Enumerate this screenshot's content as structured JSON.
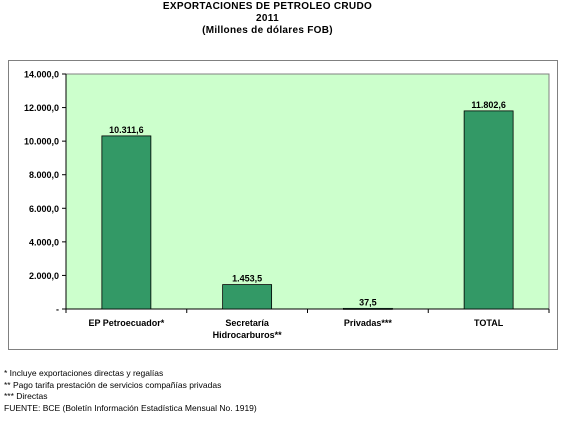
{
  "chart_data": {
    "type": "bar",
    "title": "EXPORTACIONES DE PETROLEO CRUDO",
    "subtitle": "2011",
    "unit_note": "(Millones de dólares FOB)",
    "categories": [
      [
        "EP Petroecuador*"
      ],
      [
        "Secretaría",
        "Hidrocarburos**"
      ],
      [
        "Privadas***"
      ],
      [
        "TOTAL"
      ]
    ],
    "values": [
      10311.6,
      1453.5,
      37.5,
      11802.6
    ],
    "data_labels": [
      "10.311,6",
      "1.453,5",
      "37,5",
      "11.802,6"
    ],
    "y_ticks": [
      {
        "value": 0,
        "label": "-"
      },
      {
        "value": 2000,
        "label": "2.000,0"
      },
      {
        "value": 4000,
        "label": "4.000,0"
      },
      {
        "value": 6000,
        "label": "6.000,0"
      },
      {
        "value": 8000,
        "label": "8.000,0"
      },
      {
        "value": 10000,
        "label": "10.000,0"
      },
      {
        "value": 12000,
        "label": "12.000,0"
      },
      {
        "value": 14000,
        "label": "14.000,0"
      }
    ],
    "ylim": [
      0,
      14000
    ],
    "grid": false,
    "colors": {
      "plot_bg": "#ccffcc",
      "bar": "#339966",
      "bar_edge": "#000000"
    }
  },
  "footnotes": [
    "* Incluye exportaciones directas y regalías",
    "** Pago tarifa prestación de servicios compañías privadas",
    "*** Directas",
    "FUENTE: BCE (Boletín Información Estadística Mensual No. 1919)"
  ]
}
